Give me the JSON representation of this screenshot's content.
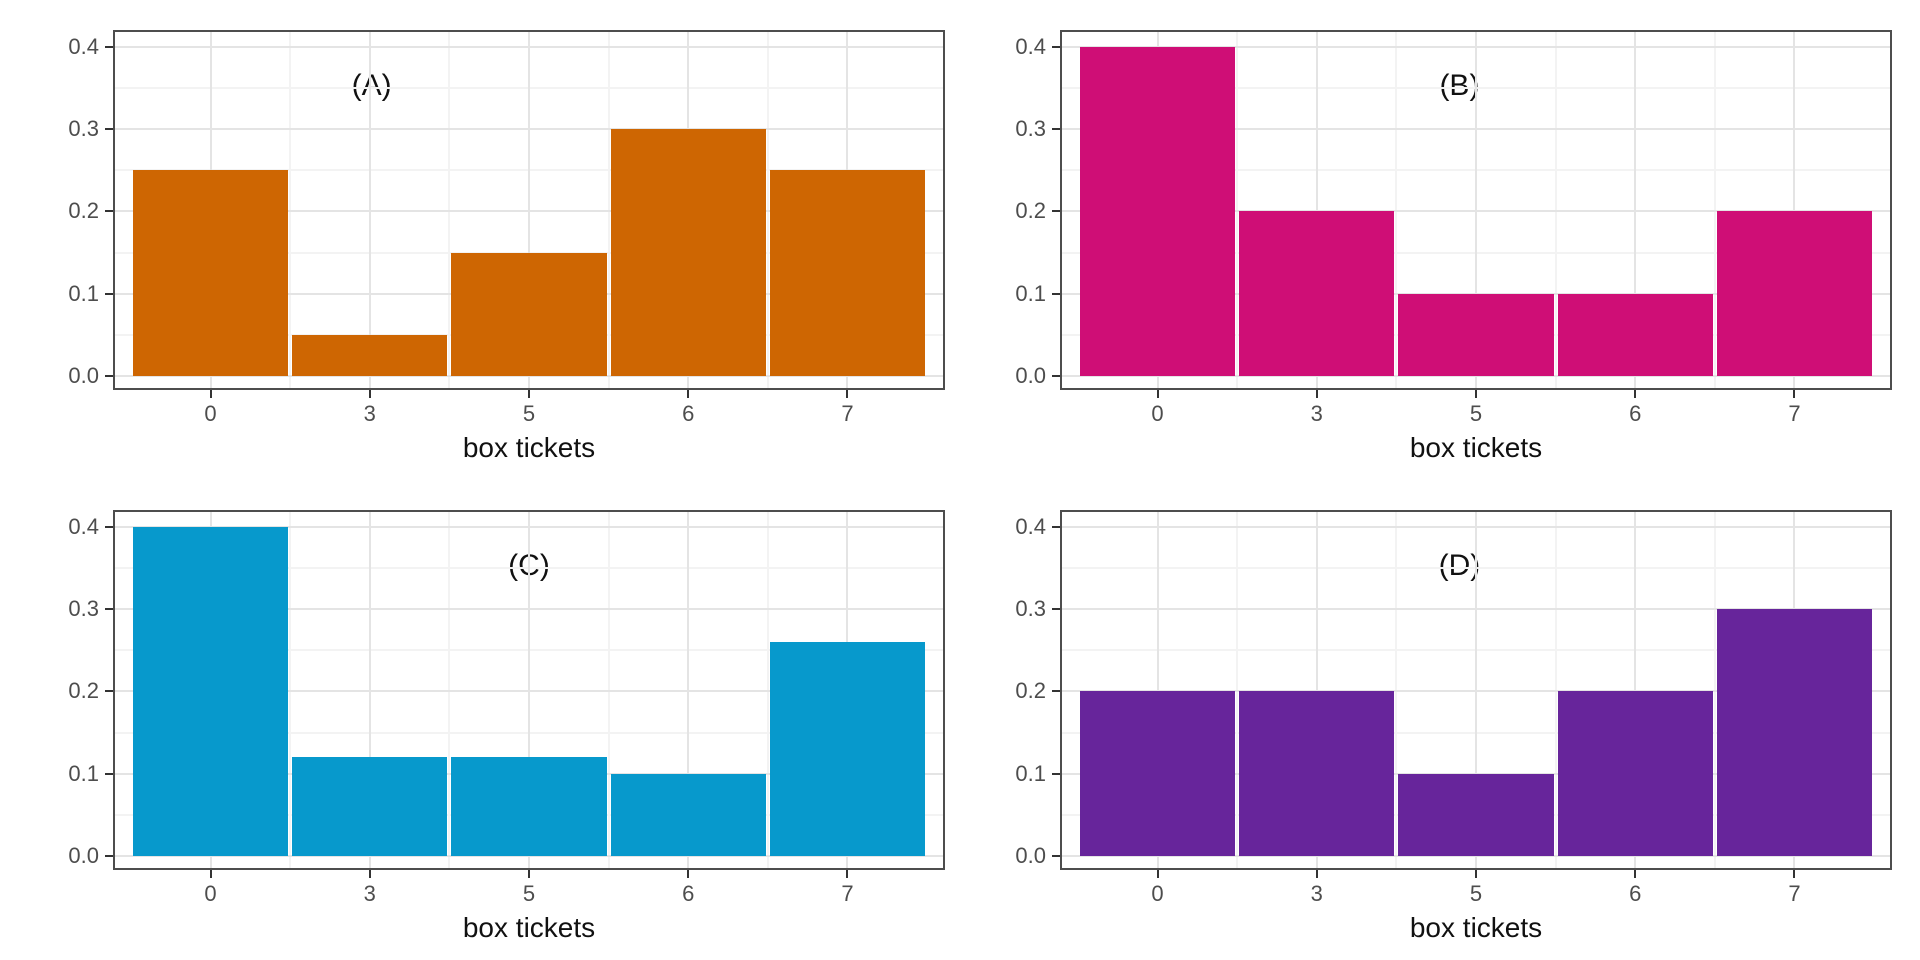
{
  "figure": {
    "background": "#FFFFFF",
    "panel_border_color": "#4D4D4D",
    "grid_major_color": "#E4E4E4",
    "grid_minor_color": "#F3F3F3",
    "tick_mark_color": "#333333",
    "tick_label_color": "#4D4D4D",
    "axis_title_color": "#111111"
  },
  "chart_data": [
    {
      "type": "bar",
      "title": "(A)",
      "xlabel": "box tickets",
      "categories": [
        "0",
        "3",
        "5",
        "6",
        "7"
      ],
      "values": [
        0.25,
        0.05,
        0.15,
        0.3,
        0.25
      ],
      "bar_color": "#CE6602",
      "ylim": [
        0,
        0.4
      ],
      "ytick_labels": [
        "0.0",
        "0.1",
        "0.2",
        "0.3",
        "0.4"
      ],
      "ytick_values": [
        0,
        0.1,
        0.2,
        0.3,
        0.4
      ],
      "grid": "on",
      "legend": "none",
      "title_x_frac": 0.31
    },
    {
      "type": "bar",
      "title": "(B)",
      "xlabel": "box tickets",
      "categories": [
        "0",
        "3",
        "5",
        "6",
        "7"
      ],
      "values": [
        0.4,
        0.2,
        0.1,
        0.1,
        0.2
      ],
      "bar_color": "#CF0E76",
      "ylim": [
        0,
        0.4
      ],
      "ytick_labels": [
        "0.0",
        "0.1",
        "0.2",
        "0.3",
        "0.4"
      ],
      "ytick_values": [
        0,
        0.1,
        0.2,
        0.3,
        0.4
      ],
      "grid": "on",
      "legend": "none",
      "title_x_frac": 0.48
    },
    {
      "type": "bar",
      "title": "(C)",
      "xlabel": "box tickets",
      "categories": [
        "0",
        "3",
        "5",
        "6",
        "7"
      ],
      "values": [
        0.4,
        0.12,
        0.12,
        0.1,
        0.26
      ],
      "bar_color": "#0799CC",
      "ylim": [
        0,
        0.4
      ],
      "ytick_labels": [
        "0.0",
        "0.1",
        "0.2",
        "0.3",
        "0.4"
      ],
      "ytick_values": [
        0,
        0.1,
        0.2,
        0.3,
        0.4
      ],
      "grid": "on",
      "legend": "none",
      "title_x_frac": 0.5
    },
    {
      "type": "bar",
      "title": "(D)",
      "xlabel": "box tickets",
      "categories": [
        "0",
        "3",
        "5",
        "6",
        "7"
      ],
      "values": [
        0.2,
        0.2,
        0.1,
        0.2,
        0.3
      ],
      "bar_color": "#67259B",
      "ylim": [
        0,
        0.4
      ],
      "ytick_labels": [
        "0.0",
        "0.1",
        "0.2",
        "0.3",
        "0.4"
      ],
      "ytick_values": [
        0,
        0.1,
        0.2,
        0.3,
        0.4
      ],
      "grid": "on",
      "legend": "none",
      "title_x_frac": 0.48
    }
  ]
}
